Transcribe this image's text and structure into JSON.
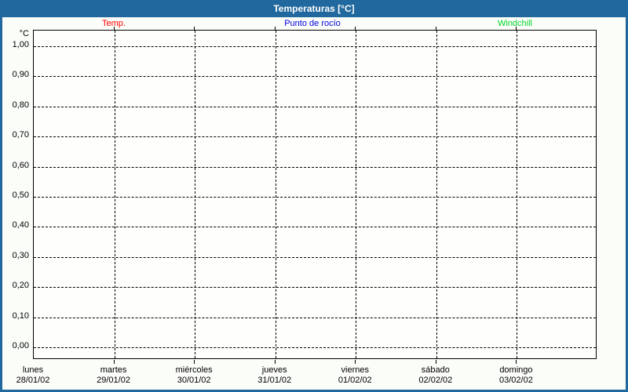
{
  "window": {
    "title": "Temperaturas [°C]"
  },
  "colors": {
    "titlebar_bg": "#20689d",
    "frame_border": "#20689d",
    "title_text": "#ffffff",
    "page_bg": "#fbfdf8",
    "plot_bg": "#fefffd",
    "grid": "#000000",
    "temp_series": "#ff0000",
    "dewpoint_series": "#0000e0",
    "windchill_series": "#00d42c"
  },
  "chart_data": {
    "type": "line",
    "title": "Temperaturas [°C]",
    "grid": true,
    "legend_position": "top",
    "y_axis": {
      "unit": "°C",
      "range": [
        0.0,
        1.0
      ],
      "tick_step": 0.1,
      "ticks": [
        {
          "value": 1.0,
          "label": "1,00"
        },
        {
          "value": 0.9,
          "label": "0,90"
        },
        {
          "value": 0.8,
          "label": "0,80"
        },
        {
          "value": 0.7,
          "label": "0,70"
        },
        {
          "value": 0.6,
          "label": "0,60"
        },
        {
          "value": 0.5,
          "label": "0,50"
        },
        {
          "value": 0.4,
          "label": "0,40"
        },
        {
          "value": 0.3,
          "label": "0,30"
        },
        {
          "value": 0.2,
          "label": "0,20"
        },
        {
          "value": 0.1,
          "label": "0,10"
        },
        {
          "value": 0.0,
          "label": "0,00"
        }
      ]
    },
    "x_axis": {
      "categories": [
        {
          "day": "lunes",
          "date": "28/01/02"
        },
        {
          "day": "martes",
          "date": "29/01/02"
        },
        {
          "day": "miércoles",
          "date": "30/01/02"
        },
        {
          "day": "jueves",
          "date": "31/01/02"
        },
        {
          "day": "viernes",
          "date": "01/02/02"
        },
        {
          "day": "sábado",
          "date": "02/02/02"
        },
        {
          "day": "domingo",
          "date": "03/02/02"
        }
      ]
    },
    "series": [
      {
        "name": "Temp.",
        "color": "#ff0000",
        "values": []
      },
      {
        "name": "Punto de rocío",
        "color": "#0000e0",
        "values": []
      },
      {
        "name": "Windchill",
        "color": "#00d42c",
        "values": []
      }
    ]
  }
}
